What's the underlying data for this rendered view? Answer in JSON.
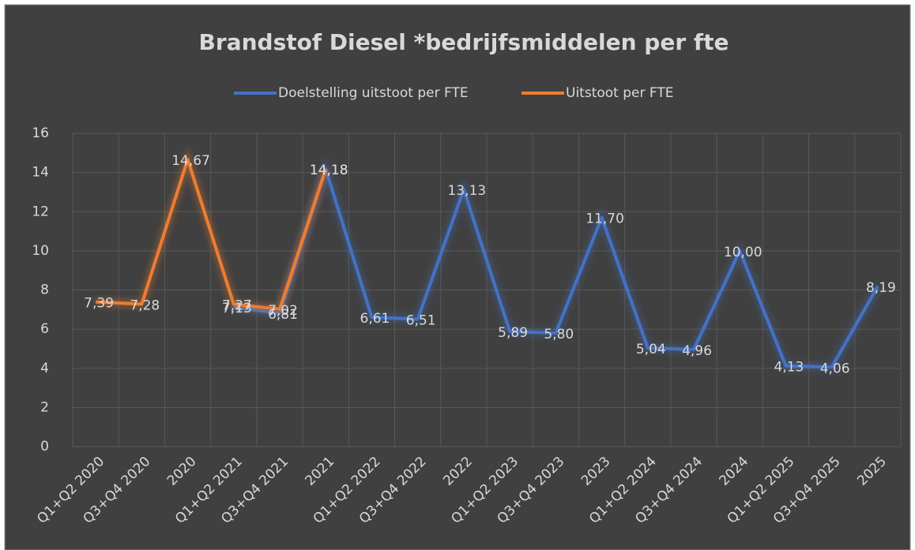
{
  "chart_data": {
    "type": "line",
    "title": "Brandstof Diesel *bedrijfsmiddelen per fte",
    "categories": [
      "Q1+Q2 2020",
      "Q3+Q4 2020",
      "2020",
      "Q1+Q2 2021",
      "Q3+Q4 2021",
      "2021",
      "Q1+Q2 2022",
      "Q3+Q4 2022",
      "2022",
      "Q1+Q2 2023",
      "Q3+Q4 2023",
      "2023",
      "Q1+Q2 2024",
      "Q3+Q4 2024",
      "2024",
      "Q1+Q2 2025",
      "Q3+Q4 2025",
      "2025"
    ],
    "series": [
      {
        "name": "Doelstelling uitstoot per FTE",
        "color": "#4472c4",
        "values": [
          null,
          null,
          null,
          7.13,
          6.81,
          14.18,
          6.61,
          6.51,
          13.13,
          5.89,
          5.8,
          11.7,
          5.04,
          4.96,
          10.0,
          4.13,
          4.06,
          8.19
        ],
        "value_labels": [
          null,
          null,
          null,
          "7,13",
          "6,81",
          "14,18",
          "6,61",
          "6,51",
          "13,13",
          "5,89",
          "5,80",
          "11,70",
          "5,04",
          "4,96",
          "10,00",
          "4,13",
          "4,06",
          "8,19"
        ]
      },
      {
        "name": "Uitstoot per FTE",
        "color": "#ed7d31",
        "values": [
          7.39,
          7.28,
          14.67,
          7.27,
          7.02,
          14.18,
          null,
          null,
          null,
          null,
          null,
          null,
          null,
          null,
          null,
          null,
          null,
          null
        ],
        "value_labels": [
          "7,39",
          "7,28",
          "14,67",
          "7,27",
          "7,02",
          "14,18",
          null,
          null,
          null,
          null,
          null,
          null,
          null,
          null,
          null,
          null,
          null,
          null
        ]
      }
    ],
    "ylim": [
      0,
      16
    ],
    "yticks": [
      0,
      2,
      4,
      6,
      8,
      10,
      12,
      14,
      16
    ],
    "grid": true,
    "legend": "top"
  }
}
